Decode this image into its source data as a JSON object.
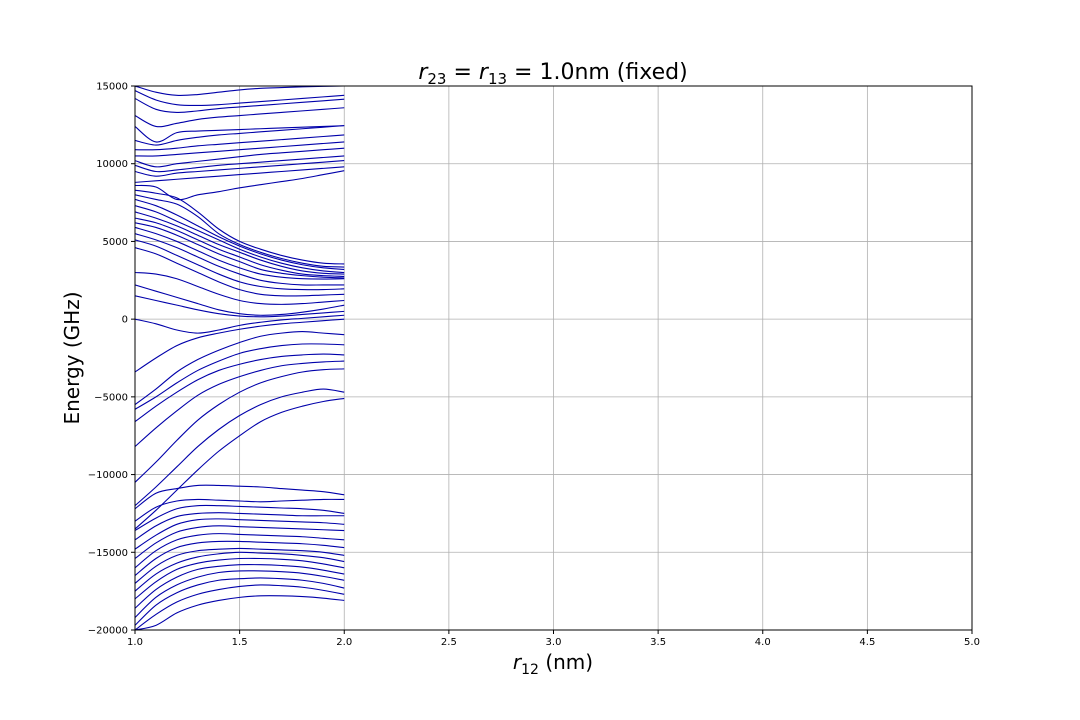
{
  "chart_data": {
    "type": "line",
    "title": "r23 = r13 = 1.0nm (fixed)",
    "title_parts": {
      "a": "r",
      "a_sub": "23",
      "eq1": " = ",
      "b": "r",
      "b_sub": "13",
      "rest": " = 1.0nm (fixed)"
    },
    "xlabel": "r12 (nm)",
    "xlabel_parts": {
      "var": "r",
      "sub": "12",
      "unit": " (nm)"
    },
    "ylabel": "Energy (GHz)",
    "xlim": [
      1.0,
      5.0
    ],
    "ylim": [
      -20000,
      15000
    ],
    "xticks": [
      "1.0",
      "1.5",
      "2.0",
      "2.5",
      "3.0",
      "3.5",
      "4.0",
      "4.5",
      "5.0"
    ],
    "yticks": [
      "−20000",
      "−15000",
      "−10000",
      "−5000",
      "0",
      "5000",
      "10000",
      "15000"
    ],
    "grid": true,
    "line_color": "#0000aa",
    "x": [
      1.0,
      1.1,
      1.2,
      1.3,
      1.4,
      1.5,
      1.6,
      1.7,
      1.8,
      1.9,
      2.0
    ],
    "series": [
      {
        "values": [
          15000,
          14600,
          14400,
          14450,
          14600,
          14750,
          14850,
          14900,
          14950,
          14980,
          15000
        ]
      },
      {
        "values": [
          14700,
          14100,
          13800,
          13750,
          13800,
          13900,
          14000,
          14100,
          14200,
          14300,
          14400
        ]
      },
      {
        "values": [
          14200,
          13500,
          13300,
          13400,
          13550,
          13650,
          13750,
          13850,
          13950,
          14050,
          14150
        ]
      },
      {
        "values": [
          13100,
          12400,
          12600,
          12850,
          13000,
          13100,
          13200,
          13300,
          13400,
          13500,
          13600
        ]
      },
      {
        "values": [
          12400,
          11400,
          12000,
          12100,
          12150,
          12200,
          12250,
          12300,
          12350,
          12400,
          12450
        ]
      },
      {
        "values": [
          11500,
          11200,
          11500,
          11700,
          11850,
          11950,
          12050,
          12150,
          12250,
          12350,
          12450
        ]
      },
      {
        "values": [
          10900,
          10900,
          11000,
          11150,
          11250,
          11350,
          11450,
          11550,
          11650,
          11750,
          11850
        ]
      },
      {
        "values": [
          10500,
          10500,
          10600,
          10700,
          10800,
          10900,
          11000,
          11100,
          11200,
          11300,
          11400
        ]
      },
      {
        "values": [
          10200,
          9800,
          10000,
          10150,
          10300,
          10450,
          10600,
          10700,
          10800,
          10900,
          11000
        ]
      },
      {
        "values": [
          9900,
          9500,
          9600,
          9750,
          9900,
          10000,
          10100,
          10200,
          10300,
          10400,
          10500
        ]
      },
      {
        "values": [
          9500,
          9200,
          9400,
          9500,
          9600,
          9700,
          9800,
          9900,
          10000,
          10100,
          10200
        ]
      },
      {
        "values": [
          8800,
          8900,
          9000,
          9100,
          9200,
          9300,
          9400,
          9500,
          9600,
          9700,
          9800
        ]
      },
      {
        "values": [
          8600,
          8500,
          7700,
          8000,
          8200,
          8450,
          8650,
          8850,
          9050,
          9300,
          9550
        ]
      },
      {
        "values": [
          8300,
          8100,
          7800,
          6900,
          5800,
          5000,
          4500,
          4100,
          3800,
          3600,
          3550
        ]
      },
      {
        "values": [
          8000,
          7700,
          7400,
          6600,
          5500,
          4800,
          4300,
          3900,
          3600,
          3400,
          3350
        ]
      },
      {
        "values": [
          7700,
          7300,
          6700,
          6000,
          5300,
          4700,
          4200,
          3800,
          3500,
          3300,
          3200
        ]
      },
      {
        "values": [
          7300,
          6900,
          6300,
          5700,
          5100,
          4500,
          4000,
          3600,
          3300,
          3100,
          3000
        ]
      },
      {
        "values": [
          6900,
          6500,
          6000,
          5400,
          4800,
          4300,
          3800,
          3400,
          3100,
          2950,
          2900
        ]
      },
      {
        "values": [
          6500,
          6200,
          5700,
          5100,
          4500,
          4000,
          3500,
          3150,
          2900,
          2800,
          2750
        ]
      },
      {
        "values": [
          6200,
          5900,
          5400,
          4800,
          4200,
          3700,
          3200,
          2950,
          2800,
          2700,
          2650
        ]
      },
      {
        "values": [
          5900,
          5500,
          5000,
          4400,
          3800,
          3300,
          2900,
          2700,
          2600,
          2580,
          2600
        ]
      },
      {
        "values": [
          5500,
          5100,
          4600,
          4000,
          3400,
          2900,
          2500,
          2300,
          2200,
          2200,
          2200
        ]
      },
      {
        "values": [
          5100,
          4700,
          4100,
          3500,
          2900,
          2400,
          2100,
          1950,
          1900,
          1900,
          1950
        ]
      },
      {
        "values": [
          4600,
          4200,
          3600,
          3000,
          2400,
          1900,
          1600,
          1500,
          1500,
          1550,
          1600
        ]
      },
      {
        "values": [
          3000,
          2900,
          2600,
          2100,
          1600,
          1200,
          1000,
          950,
          1000,
          1100,
          1200
        ]
      },
      {
        "values": [
          2200,
          1800,
          1400,
          1000,
          600,
          350,
          250,
          300,
          450,
          650,
          900
        ]
      },
      {
        "values": [
          1500,
          1200,
          900,
          600,
          350,
          200,
          150,
          200,
          300,
          400,
          500
        ]
      },
      {
        "values": [
          0,
          -300,
          -700,
          -900,
          -700,
          -400,
          -200,
          -50,
          50,
          150,
          250
        ]
      },
      {
        "values": [
          -3400,
          -2500,
          -1700,
          -1200,
          -900,
          -650,
          -450,
          -300,
          -200,
          -100,
          0
        ]
      },
      {
        "values": [
          -5500,
          -4500,
          -3400,
          -2600,
          -2000,
          -1500,
          -1100,
          -900,
          -800,
          -900,
          -1000
        ]
      },
      {
        "values": [
          -5800,
          -5000,
          -4100,
          -3300,
          -2700,
          -2200,
          -1900,
          -1700,
          -1600,
          -1600,
          -1650
        ]
      },
      {
        "values": [
          -6600,
          -5600,
          -4700,
          -3900,
          -3300,
          -2900,
          -2600,
          -2400,
          -2300,
          -2250,
          -2300
        ]
      },
      {
        "values": [
          -8200,
          -7000,
          -5900,
          -4900,
          -4200,
          -3700,
          -3300,
          -3000,
          -2850,
          -2750,
          -2700
        ]
      },
      {
        "values": [
          -10500,
          -9200,
          -7800,
          -6500,
          -5500,
          -4700,
          -4100,
          -3700,
          -3400,
          -3250,
          -3200
        ]
      },
      {
        "values": [
          -12000,
          -10800,
          -9500,
          -8200,
          -7100,
          -6200,
          -5500,
          -5000,
          -4700,
          -4500,
          -4700
        ]
      },
      {
        "values": [
          -13500,
          -12300,
          -11000,
          -9700,
          -8500,
          -7500,
          -6600,
          -6000,
          -5600,
          -5300,
          -5100
        ]
      },
      {
        "values": [
          -12200,
          -11200,
          -10900,
          -10700,
          -10700,
          -10750,
          -10800,
          -10900,
          -11000,
          -11100,
          -11300
        ]
      },
      {
        "values": [
          -13000,
          -12100,
          -11700,
          -11600,
          -11650,
          -11700,
          -11750,
          -11700,
          -11650,
          -11600,
          -11600
        ]
      },
      {
        "values": [
          -13600,
          -12800,
          -12200,
          -12000,
          -12000,
          -12050,
          -12100,
          -12150,
          -12200,
          -12300,
          -12500
        ]
      },
      {
        "values": [
          -14200,
          -13300,
          -12700,
          -12500,
          -12450,
          -12500,
          -12550,
          -12600,
          -12650,
          -12650,
          -12650
        ]
      },
      {
        "values": [
          -14800,
          -13900,
          -13200,
          -12900,
          -12850,
          -12900,
          -12950,
          -13000,
          -13050,
          -13100,
          -13200
        ]
      },
      {
        "values": [
          -15400,
          -14400,
          -13700,
          -13400,
          -13300,
          -13350,
          -13400,
          -13450,
          -13500,
          -13550,
          -13600
        ]
      },
      {
        "values": [
          -16000,
          -14900,
          -14200,
          -13900,
          -13800,
          -13850,
          -13900,
          -13950,
          -14000,
          -14100,
          -14200
        ]
      },
      {
        "values": [
          -16500,
          -15400,
          -14700,
          -14400,
          -14300,
          -14300,
          -14350,
          -14400,
          -14450,
          -14550,
          -14700
        ]
      },
      {
        "values": [
          -17000,
          -15900,
          -15200,
          -14900,
          -14800,
          -14750,
          -14800,
          -14850,
          -14900,
          -15000,
          -15200
        ]
      },
      {
        "values": [
          -17500,
          -16400,
          -15700,
          -15300,
          -15100,
          -15000,
          -15050,
          -15100,
          -15200,
          -15350,
          -15600
        ]
      },
      {
        "values": [
          -18000,
          -16900,
          -16100,
          -15700,
          -15500,
          -15400,
          -15400,
          -15450,
          -15550,
          -15750,
          -16000
        ]
      },
      {
        "values": [
          -18600,
          -17400,
          -16600,
          -16100,
          -15900,
          -15800,
          -15800,
          -15850,
          -15950,
          -16150,
          -16400
        ]
      },
      {
        "values": [
          -19200,
          -17900,
          -17100,
          -16600,
          -16300,
          -16200,
          -16200,
          -16250,
          -16350,
          -16550,
          -16800
        ]
      },
      {
        "values": [
          -19700,
          -18400,
          -17600,
          -17100,
          -16800,
          -16700,
          -16650,
          -16700,
          -16800,
          -17000,
          -17300
        ]
      },
      {
        "values": [
          -20000,
          -19000,
          -18200,
          -17700,
          -17400,
          -17200,
          -17100,
          -17150,
          -17250,
          -17450,
          -17700
        ]
      },
      {
        "values": [
          -20000,
          -19700,
          -18900,
          -18400,
          -18100,
          -17900,
          -17800,
          -17800,
          -17850,
          -17950,
          -18100
        ]
      }
    ]
  }
}
